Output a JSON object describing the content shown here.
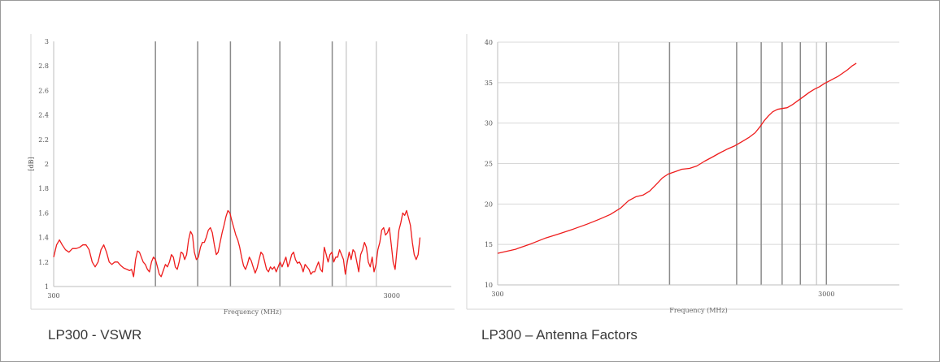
{
  "captions": [
    "LP300 - VSWR",
    "LP300 – Antenna Factors"
  ],
  "chart_data": [
    {
      "type": "line",
      "title": "",
      "xlabel": "Frequency (MHz)",
      "ylabel": "[dB]",
      "xscale": "log",
      "xlim": [
        300,
        4500
      ],
      "ylim": [
        1,
        3
      ],
      "xticks": [
        300,
        3000
      ],
      "xtick_labels": [
        "300",
        "3000"
      ],
      "yticks": [
        1,
        1.2,
        1.4,
        1.6,
        1.8,
        2,
        2.2,
        2.4,
        2.6,
        2.8,
        3
      ],
      "ytick_labels": [
        "1",
        "1.2",
        "1.4",
        "1.6",
        "1.8",
        "2",
        "2.2",
        "2.4",
        "2.6",
        "2.8",
        "3"
      ],
      "grid": {
        "horizontal": false,
        "vertical": true
      },
      "vlines_dark": [
        600,
        800,
        1000,
        1400,
        2000
      ],
      "vlines_light": [
        2200,
        2700
      ],
      "line_color": "#ee1c1c",
      "series": [
        {
          "values": [
            [
              300,
              1.24
            ],
            [
              306,
              1.34
            ],
            [
              312,
              1.38
            ],
            [
              318,
              1.34
            ],
            [
              325,
              1.3
            ],
            [
              333,
              1.28
            ],
            [
              341,
              1.31
            ],
            [
              350,
              1.31
            ],
            [
              358,
              1.32
            ],
            [
              366,
              1.34
            ],
            [
              374,
              1.34
            ],
            [
              382,
              1.3
            ],
            [
              390,
              1.2
            ],
            [
              398,
              1.16
            ],
            [
              406,
              1.2
            ],
            [
              414,
              1.3
            ],
            [
              422,
              1.34
            ],
            [
              430,
              1.28
            ],
            [
              438,
              1.2
            ],
            [
              446,
              1.18
            ],
            [
              455,
              1.2
            ],
            [
              464,
              1.2
            ],
            [
              474,
              1.17
            ],
            [
              484,
              1.15
            ],
            [
              494,
              1.14
            ],
            [
              503,
              1.13
            ],
            [
              510,
              1.14
            ],
            [
              517,
              1.08
            ],
            [
              524,
              1.22
            ],
            [
              531,
              1.29
            ],
            [
              538,
              1.28
            ],
            [
              545,
              1.24
            ],
            [
              552,
              1.2
            ],
            [
              560,
              1.18
            ],
            [
              568,
              1.14
            ],
            [
              576,
              1.12
            ],
            [
              584,
              1.2
            ],
            [
              592,
              1.24
            ],
            [
              600,
              1.22
            ],
            [
              608,
              1.16
            ],
            [
              616,
              1.1
            ],
            [
              624,
              1.08
            ],
            [
              633,
              1.13
            ],
            [
              642,
              1.18
            ],
            [
              651,
              1.16
            ],
            [
              660,
              1.2
            ],
            [
              669,
              1.26
            ],
            [
              678,
              1.24
            ],
            [
              687,
              1.16
            ],
            [
              696,
              1.14
            ],
            [
              705,
              1.2
            ],
            [
              714,
              1.28
            ],
            [
              723,
              1.27
            ],
            [
              732,
              1.22
            ],
            [
              742,
              1.26
            ],
            [
              752,
              1.38
            ],
            [
              762,
              1.45
            ],
            [
              772,
              1.42
            ],
            [
              782,
              1.28
            ],
            [
              793,
              1.22
            ],
            [
              804,
              1.24
            ],
            [
              815,
              1.32
            ],
            [
              826,
              1.36
            ],
            [
              837,
              1.36
            ],
            [
              848,
              1.4
            ],
            [
              860,
              1.46
            ],
            [
              872,
              1.48
            ],
            [
              884,
              1.44
            ],
            [
              896,
              1.34
            ],
            [
              908,
              1.26
            ],
            [
              920,
              1.28
            ],
            [
              932,
              1.36
            ],
            [
              945,
              1.44
            ],
            [
              957,
              1.5
            ],
            [
              970,
              1.57
            ],
            [
              983,
              1.62
            ],
            [
              996,
              1.6
            ],
            [
              1009,
              1.54
            ],
            [
              1023,
              1.48
            ],
            [
              1037,
              1.42
            ],
            [
              1051,
              1.38
            ],
            [
              1065,
              1.32
            ],
            [
              1079,
              1.24
            ],
            [
              1093,
              1.17
            ],
            [
              1108,
              1.14
            ],
            [
              1122,
              1.18
            ],
            [
              1137,
              1.24
            ],
            [
              1152,
              1.21
            ],
            [
              1167,
              1.16
            ],
            [
              1183,
              1.11
            ],
            [
              1199,
              1.15
            ],
            [
              1215,
              1.22
            ],
            [
              1231,
              1.28
            ],
            [
              1247,
              1.26
            ],
            [
              1263,
              1.2
            ],
            [
              1279,
              1.14
            ],
            [
              1296,
              1.12
            ],
            [
              1313,
              1.16
            ],
            [
              1330,
              1.14
            ],
            [
              1348,
              1.16
            ],
            [
              1366,
              1.12
            ],
            [
              1384,
              1.16
            ],
            [
              1402,
              1.2
            ],
            [
              1421,
              1.16
            ],
            [
              1440,
              1.2
            ],
            [
              1459,
              1.24
            ],
            [
              1478,
              1.16
            ],
            [
              1497,
              1.2
            ],
            [
              1517,
              1.26
            ],
            [
              1537,
              1.28
            ],
            [
              1557,
              1.22
            ],
            [
              1578,
              1.19
            ],
            [
              1599,
              1.2
            ],
            [
              1620,
              1.17
            ],
            [
              1641,
              1.12
            ],
            [
              1663,
              1.18
            ],
            [
              1685,
              1.16
            ],
            [
              1707,
              1.14
            ],
            [
              1729,
              1.1
            ],
            [
              1752,
              1.12
            ],
            [
              1775,
              1.12
            ],
            [
              1798,
              1.16
            ],
            [
              1822,
              1.2
            ],
            [
              1846,
              1.14
            ],
            [
              1870,
              1.12
            ],
            [
              1895,
              1.32
            ],
            [
              1920,
              1.26
            ],
            [
              1945,
              1.2
            ],
            [
              1970,
              1.26
            ],
            [
              1996,
              1.28
            ],
            [
              2022,
              1.2
            ],
            [
              2049,
              1.24
            ],
            [
              2076,
              1.24
            ],
            [
              2103,
              1.3
            ],
            [
              2131,
              1.26
            ],
            [
              2159,
              1.22
            ],
            [
              2187,
              1.1
            ],
            [
              2216,
              1.2
            ],
            [
              2245,
              1.28
            ],
            [
              2274,
              1.22
            ],
            [
              2304,
              1.3
            ],
            [
              2334,
              1.28
            ],
            [
              2365,
              1.2
            ],
            [
              2396,
              1.12
            ],
            [
              2427,
              1.26
            ],
            [
              2459,
              1.3
            ],
            [
              2491,
              1.36
            ],
            [
              2524,
              1.32
            ],
            [
              2557,
              1.2
            ],
            [
              2591,
              1.16
            ],
            [
              2625,
              1.24
            ],
            [
              2659,
              1.12
            ],
            [
              2694,
              1.18
            ],
            [
              2729,
              1.3
            ],
            [
              2765,
              1.36
            ],
            [
              2801,
              1.46
            ],
            [
              2838,
              1.48
            ],
            [
              2875,
              1.42
            ],
            [
              2913,
              1.44
            ],
            [
              2951,
              1.48
            ],
            [
              2990,
              1.34
            ],
            [
              3029,
              1.2
            ],
            [
              3069,
              1.14
            ],
            [
              3109,
              1.3
            ],
            [
              3150,
              1.46
            ],
            [
              3191,
              1.52
            ],
            [
              3233,
              1.6
            ],
            [
              3276,
              1.58
            ],
            [
              3319,
              1.62
            ],
            [
              3362,
              1.56
            ],
            [
              3406,
              1.5
            ],
            [
              3451,
              1.36
            ],
            [
              3496,
              1.26
            ],
            [
              3542,
              1.22
            ],
            [
              3589,
              1.26
            ],
            [
              3636,
              1.4
            ]
          ]
        }
      ]
    },
    {
      "type": "line",
      "title": "",
      "xlabel": "Frequency (MHz)",
      "ylabel": "",
      "xscale": "log",
      "xlim": [
        300,
        5000
      ],
      "ylim": [
        10,
        40
      ],
      "xticks": [
        300,
        3000
      ],
      "xtick_labels": [
        "300",
        "3000"
      ],
      "yticks": [
        10,
        15,
        20,
        25,
        30,
        35,
        40
      ],
      "ytick_labels": [
        "10",
        "15",
        "20",
        "25",
        "30",
        "35",
        "40"
      ],
      "grid": {
        "horizontal": true,
        "vertical": true
      },
      "vlines_light": [
        700,
        2800
      ],
      "vlines_dark": [
        1000,
        1600,
        1900,
        2200,
        2500,
        3000
      ],
      "line_color": "#ee1c1c",
      "series": [
        {
          "values": [
            [
              300,
              13.9
            ],
            [
              340,
              14.4
            ],
            [
              380,
              15.1
            ],
            [
              420,
              15.8
            ],
            [
              460,
              16.3
            ],
            [
              510,
              16.9
            ],
            [
              560,
              17.5
            ],
            [
              610,
              18.1
            ],
            [
              660,
              18.7
            ],
            [
              710,
              19.5
            ],
            [
              750,
              20.4
            ],
            [
              790,
              20.9
            ],
            [
              830,
              21.1
            ],
            [
              870,
              21.6
            ],
            [
              910,
              22.4
            ],
            [
              950,
              23.2
            ],
            [
              990,
              23.7
            ],
            [
              1040,
              24.0
            ],
            [
              1090,
              24.3
            ],
            [
              1150,
              24.4
            ],
            [
              1210,
              24.7
            ],
            [
              1280,
              25.3
            ],
            [
              1350,
              25.8
            ],
            [
              1420,
              26.3
            ],
            [
              1500,
              26.8
            ],
            [
              1580,
              27.2
            ],
            [
              1660,
              27.7
            ],
            [
              1740,
              28.2
            ],
            [
              1820,
              28.8
            ],
            [
              1880,
              29.5
            ],
            [
              1940,
              30.3
            ],
            [
              2000,
              30.9
            ],
            [
              2060,
              31.4
            ],
            [
              2130,
              31.7
            ],
            [
              2200,
              31.8
            ],
            [
              2280,
              31.9
            ],
            [
              2370,
              32.3
            ],
            [
              2460,
              32.8
            ],
            [
              2560,
              33.3
            ],
            [
              2660,
              33.8
            ],
            [
              2760,
              34.2
            ],
            [
              2860,
              34.5
            ],
            [
              2960,
              34.9
            ],
            [
              3060,
              35.2
            ],
            [
              3160,
              35.5
            ],
            [
              3260,
              35.8
            ],
            [
              3370,
              36.2
            ],
            [
              3480,
              36.6
            ],
            [
              3600,
              37.1
            ],
            [
              3700,
              37.4
            ]
          ]
        }
      ]
    }
  ]
}
